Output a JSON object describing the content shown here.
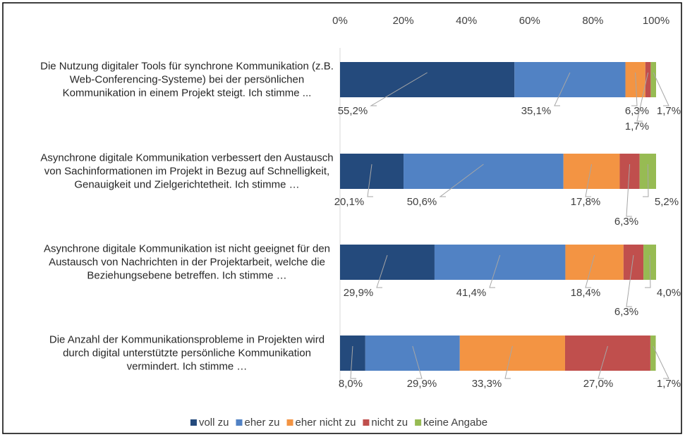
{
  "chart_data": {
    "type": "stacked-bar-horizontal",
    "categories": [
      "Die Nutzung digitaler Tools für synchrone Kommunikation (z.B. Web-Conferencing-Systeme) bei der persönlichen Kommunikation in einem Projekt steigt. Ich stimme ...",
      "Asynchrone digitale Kommunikation verbessert den Austausch von Sachinformationen im Projekt in Bezug auf Schnelligkeit, Genauigkeit und Zielgerichtetheit. Ich stimme …",
      "Asynchrone digitale Kommunikation ist nicht geeignet für den Austausch von Nachrichten in der Projektarbeit, welche die Beziehungsebene betreffen. Ich stimme …",
      "Die Anzahl der Kommunikationsprobleme in Projekten wird durch digital unterstützte persönliche Kommunikation vermindert. Ich stimme …"
    ],
    "series": [
      {
        "name": "voll zu",
        "color": "#244a7c",
        "values": [
          55.2,
          20.1,
          29.9,
          8.0
        ],
        "value_labels": [
          "55,2%",
          "20,1%",
          "29,9%",
          "8,0%"
        ]
      },
      {
        "name": "eher zu",
        "color": "#5182c4",
        "values": [
          35.1,
          50.6,
          41.4,
          29.9
        ],
        "value_labels": [
          "35,1%",
          "50,6%",
          "41,4%",
          "29,9%"
        ]
      },
      {
        "name": "eher nicht zu",
        "color": "#f39443",
        "values": [
          6.3,
          17.8,
          18.4,
          33.3
        ],
        "value_labels": [
          "6,3%",
          "17,8%",
          "18,4%",
          "33,3%"
        ]
      },
      {
        "name": "nicht zu",
        "color": "#c04f4d",
        "values": [
          1.7,
          6.3,
          6.3,
          27.0
        ],
        "value_labels": [
          "1,7%",
          "6,3%",
          "6,3%",
          "27,0%"
        ]
      },
      {
        "name": "keine Angabe",
        "color": "#97bb53",
        "values": [
          1.7,
          5.2,
          4.0,
          1.7
        ],
        "value_labels": [
          "1,7%",
          "5,2%",
          "4,0%",
          "1,7%"
        ]
      }
    ],
    "xlim": [
      0,
      100
    ],
    "xticks": [
      {
        "value": 0,
        "label": "0%"
      },
      {
        "value": 20,
        "label": "20%"
      },
      {
        "value": 40,
        "label": "40%"
      },
      {
        "value": 60,
        "label": "60%"
      },
      {
        "value": 80,
        "label": "80%"
      },
      {
        "value": 100,
        "label": "100%"
      }
    ],
    "legend": "bottom"
  }
}
